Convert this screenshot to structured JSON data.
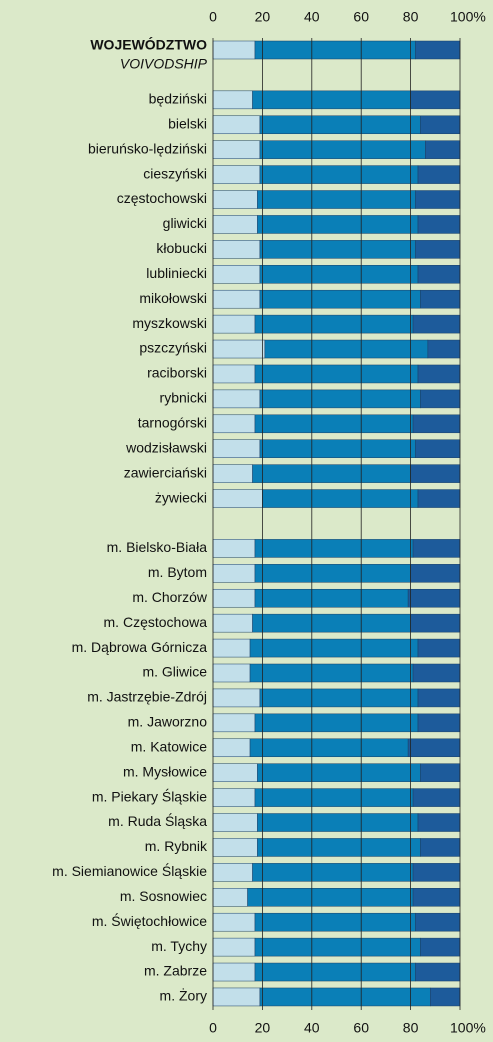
{
  "chart_data": {
    "type": "stacked_barh",
    "categories": [
      "WOJEWÓDZTWO",
      null,
      "będziński",
      "bielski",
      "bieruńsko-lędziński",
      "cieszyński",
      "częstochowski",
      "gliwicki",
      "kłobucki",
      "lubliniecki",
      "mikołowski",
      "myszkowski",
      "pszczyński",
      "raciborski",
      "rybnicki",
      "tarnogórski",
      "wodzisławski",
      "zawierciański",
      "żywiecki",
      null,
      "m. Bielsko-Biała",
      "m. Bytom",
      "m. Chorzów",
      "m. Częstochowa",
      "m. Dąbrowa Górnicza",
      "m. Gliwice",
      "m. Jastrzębie-Zdrój",
      "m. Jaworzno",
      "m. Katowice",
      "m. Mysłowice",
      "m. Piekary Śląskie",
      "m. Ruda Śląska",
      "m. Rybnik",
      "m. Siemianowice Śląskie",
      "m. Sosnowiec",
      "m. Świętochłowice",
      "m. Tychy",
      "m. Zabrze",
      "m. Żory"
    ],
    "first_category_sublabel": "VOIVODSHIP",
    "series": [
      {
        "color": "#c2dfea",
        "values": [
          17,
          null,
          16,
          19,
          19,
          19,
          18,
          18,
          19,
          19,
          19,
          17,
          21,
          17,
          19,
          17,
          19,
          16,
          20,
          null,
          17,
          17,
          17,
          16,
          15,
          15,
          19,
          17,
          15,
          18,
          17,
          18,
          18,
          16,
          14,
          17,
          17,
          17,
          19
        ]
      },
      {
        "color": "#0a7fb7",
        "values": [
          65,
          null,
          64,
          65,
          67,
          64,
          64,
          65,
          63,
          64,
          65,
          64,
          66,
          66,
          65,
          64,
          63,
          64,
          63,
          null,
          64,
          63,
          62,
          64,
          68,
          66,
          64,
          66,
          64,
          66,
          64,
          65,
          66,
          65,
          67,
          65,
          67,
          65,
          69
        ]
      },
      {
        "color": "#1d5b9b",
        "values": [
          18,
          null,
          20,
          16,
          14,
          17,
          18,
          17,
          18,
          17,
          16,
          19,
          13,
          17,
          16,
          19,
          18,
          20,
          17,
          null,
          19,
          20,
          21,
          20,
          17,
          19,
          17,
          17,
          21,
          16,
          19,
          17,
          16,
          19,
          19,
          18,
          16,
          18,
          12
        ]
      }
    ],
    "xlim": [
      0,
      100
    ],
    "xticks": [
      0,
      20,
      40,
      60,
      80,
      {
        "value": 100,
        "label": "100%"
      }
    ],
    "grid": true
  }
}
